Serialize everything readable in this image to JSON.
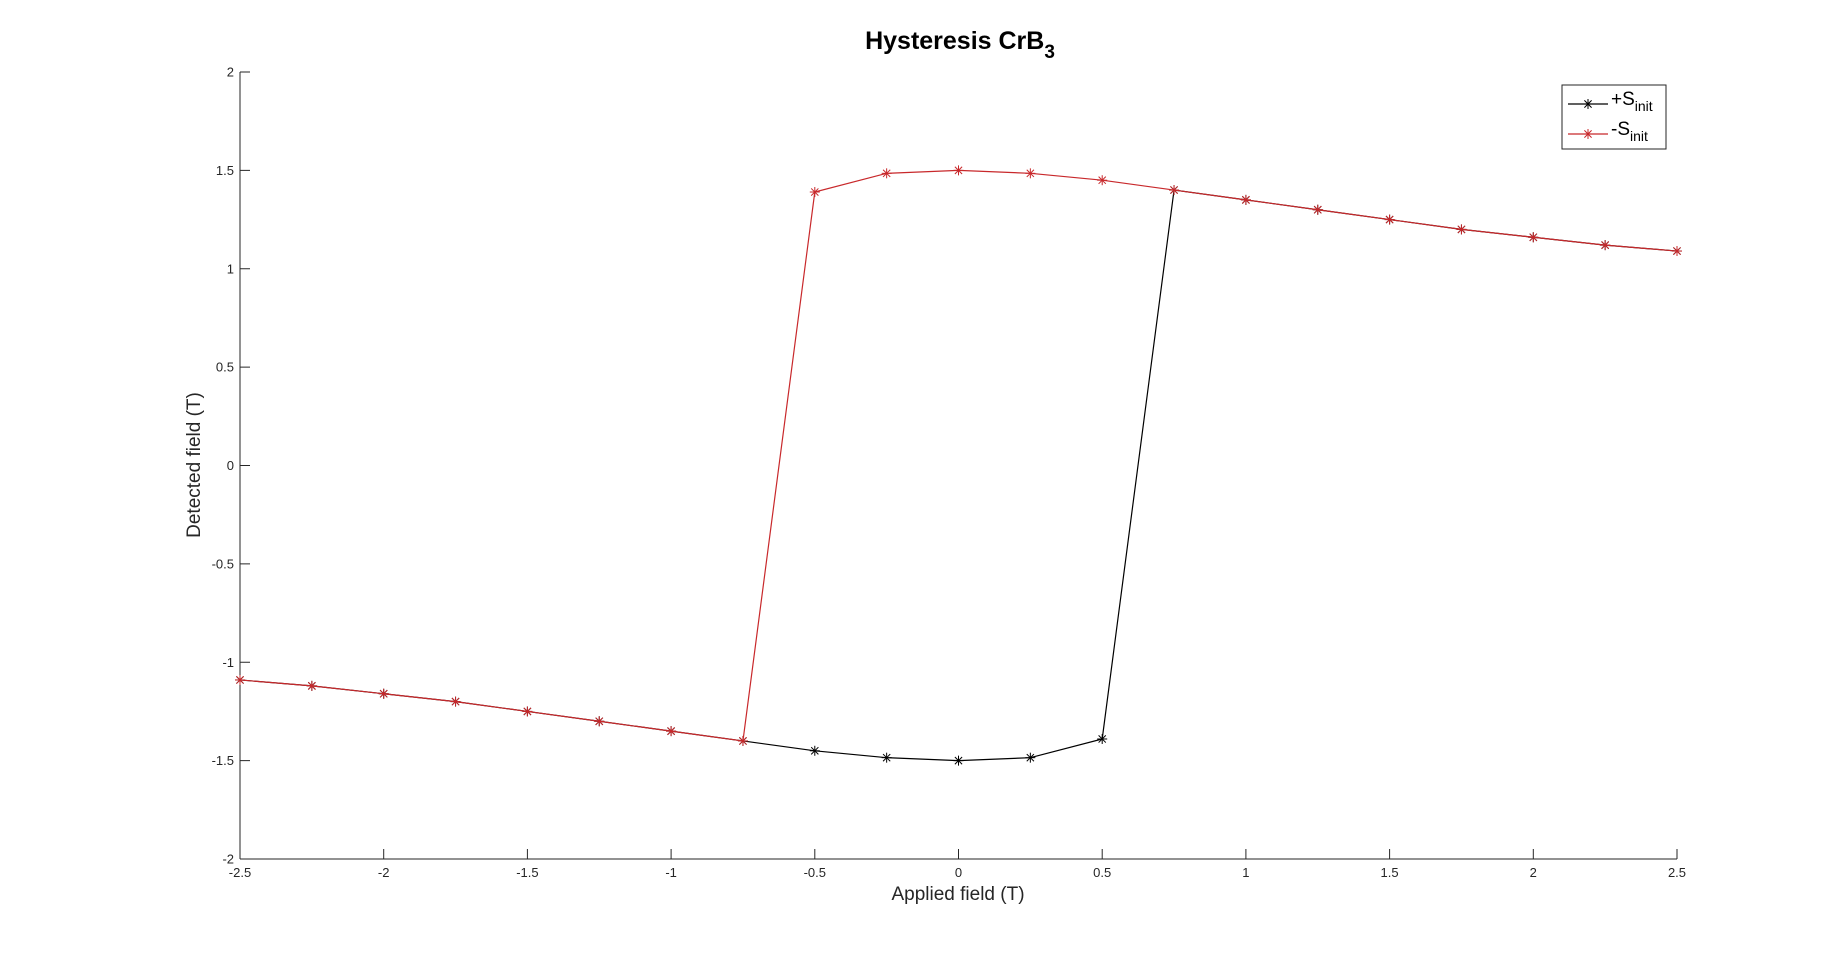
{
  "chart_data": {
    "type": "line",
    "title": "Hysteresis CrB",
    "title_subscript": "3",
    "xlabel": "Applied field (T)",
    "ylabel": "Detected field (T)",
    "xlim": [
      -2.5,
      2.5
    ],
    "ylim": [
      -2,
      2
    ],
    "xticks": [
      "-2.5",
      "-2",
      "-1.5",
      "-1",
      "-0.5",
      "0",
      "0.5",
      "1",
      "1.5",
      "2",
      "2.5"
    ],
    "yticks": [
      "2",
      "1.5",
      "1",
      "0.5",
      "0",
      "-0.5",
      "-1",
      "-1.5",
      "-2"
    ],
    "grid": false,
    "legend_position": "top-right",
    "marker": "asterisk",
    "series": [
      {
        "name": "+S",
        "name_subscript": "init",
        "color": "#000000",
        "x": [
          -2.5,
          -2.25,
          -2,
          -1.75,
          -1.5,
          -1.25,
          -1,
          -0.75,
          -0.5,
          -0.25,
          0,
          0.25,
          0.5,
          0.75,
          1,
          1.25,
          1.5,
          1.75,
          2,
          2.25,
          2.5
        ],
        "y": [
          -1.09,
          -1.12,
          -1.16,
          -1.2,
          -1.25,
          -1.3,
          -1.35,
          -1.4,
          -1.45,
          -1.485,
          -1.5,
          -1.485,
          -1.39,
          1.4,
          1.35,
          1.3,
          1.25,
          1.2,
          1.16,
          1.12,
          1.09
        ]
      },
      {
        "name": "-S",
        "name_subscript": "init",
        "color": "#c8282b",
        "x": [
          2.5,
          2.25,
          2,
          1.75,
          1.5,
          1.25,
          1,
          0.75,
          0.5,
          0.25,
          0,
          -0.25,
          -0.5,
          -0.75,
          -1,
          -1.25,
          -1.5,
          -1.75,
          -2,
          -2.25,
          -2.5
        ],
        "y": [
          1.09,
          1.12,
          1.16,
          1.2,
          1.25,
          1.3,
          1.35,
          1.4,
          1.45,
          1.485,
          1.5,
          1.485,
          1.39,
          -1.4,
          -1.35,
          -1.3,
          -1.25,
          -1.2,
          -1.16,
          -1.12,
          -1.09
        ]
      }
    ]
  }
}
